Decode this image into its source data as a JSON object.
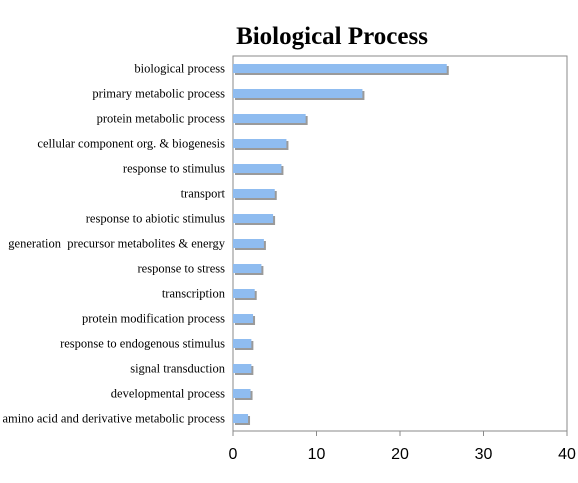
{
  "chart_data": {
    "type": "bar",
    "orientation": "horizontal",
    "title": "Biological Process",
    "xlabel": "",
    "ylabel": "",
    "categories": [
      "biological process",
      "primary metabolic process",
      "protein metabolic process",
      "cellular component org. & biogenesis",
      "response to stimulus",
      "transport",
      "response to abiotic stimulus",
      "generation  precursor metabolites & energy",
      "response to stress",
      "transcription",
      "protein modification process",
      "response to endogenous stimulus",
      "signal transduction",
      "developmental process",
      "amino acid and derivative metabolic process"
    ],
    "values": [
      25.6,
      15.5,
      8.7,
      6.4,
      5.8,
      5.0,
      4.8,
      3.7,
      3.4,
      2.6,
      2.4,
      2.2,
      2.2,
      2.1,
      1.8
    ],
    "xlim": [
      0,
      40
    ],
    "xticks": [
      "0",
      "10",
      "20",
      "30",
      "40"
    ],
    "grid": false,
    "legend": "none",
    "bar_color": "#8fbcf0",
    "bar_shadow_color": "#9a9a9a"
  }
}
